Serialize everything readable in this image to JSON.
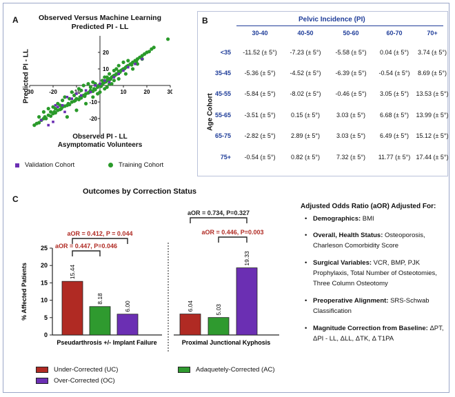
{
  "panel_a": {
    "letter": "A",
    "title_line1": "Observed Versus Machine Learning",
    "title_line2": "Predicted PI - LL",
    "xlabel_line1": "Observed PI - LL",
    "xlabel_line2": "Asymptomatic Volunteers",
    "ylabel": "Predicted PI - LL",
    "legend": {
      "validation": "Validation Cohort",
      "training": "Training Cohort"
    },
    "colors": {
      "validation": "#6b2fb3",
      "training": "#2a9a2a"
    }
  },
  "panel_b": {
    "letter": "B",
    "title": "Pelvic Incidence (PI)",
    "row_axis_label": "Age Cohort",
    "columns": [
      "30-40",
      "40-50",
      "50-60",
      "60-70",
      "70+"
    ],
    "rows": [
      {
        "label": "<35",
        "values": [
          "-11.52 (± 5°)",
          "-7.23 (± 5°)",
          "-5.58 (± 5°)",
          "0.04 (± 5°)",
          "3.74 (± 5°)"
        ]
      },
      {
        "label": "35-45",
        "values": [
          "-5.36 (± 5°)",
          "-4.52 (± 5°)",
          "-6.39 (± 5°)",
          "-0.54 (± 5°)",
          "8.69 (± 5°)"
        ]
      },
      {
        "label": "45-55",
        "values": [
          "-5.84 (± 5°)",
          "-8.02 (± 5°)",
          "-0.46 (± 5°)",
          "3.05 (± 5°)",
          "13.53 (± 5°)"
        ]
      },
      {
        "label": "55-65",
        "values": [
          "-3.51 (± 5°)",
          "0.15 (± 5°)",
          "3.03 (± 5°)",
          "6.68 (± 5°)",
          "13.99 (± 5°)"
        ]
      },
      {
        "label": "65-75",
        "values": [
          "-2.82 (± 5°)",
          "2.89 (± 5°)",
          "3.03 (± 5°)",
          "6.49 (± 5°)",
          "15.12 (± 5°)"
        ]
      },
      {
        "label": "75+",
        "values": [
          "-0.54 (± 5°)",
          "0.82 (± 5°)",
          "7.32 (± 5°)",
          "11.77 (± 5°)",
          "17.44 (± 5°)"
        ]
      }
    ]
  },
  "panel_c": {
    "letter": "C",
    "annotations": {
      "pa_upper": "aOR = 0.412, P = 0.044",
      "pa_lower": "aOR = 0.447, P=0.046",
      "pjk_upper": "aOR = 0.734, P=0.327",
      "pjk_lower": "aOR = 0.446, P=0.003"
    },
    "colors": {
      "uc": "#b02a23",
      "ac": "#2f9a2f",
      "oc": "#6b2fb3",
      "sig": "#b02a23",
      "nonsig": "#222222"
    },
    "legend": {
      "uc": "Under-Corrected (UC)",
      "ac": "Adaquetely-Corrected (AC)",
      "oc": "Over-Corrected (OC)"
    }
  },
  "adjusted": {
    "heading": "Adjusted Odds Ratio (aOR) Adjusted For:",
    "items": [
      {
        "label": "Demographics:",
        "text": "BMI"
      },
      {
        "label": "Overall, Health Status:",
        "text": "Osteoporosis, Charleson Comorbidity Score"
      },
      {
        "label": "Surgical Variables:",
        "text": "VCR, BMP, PJK Prophylaxis, Total Number of Osteotomies, Three Column Osteotomy"
      },
      {
        "label": "Preoperative Alignment:",
        "text": "SRS-Schwab Classification"
      },
      {
        "label": "Magnitude Correction from Baseline:",
        "text": "ΔPT, ΔPI - LL, ΔLL, ΔTK, Δ T1PA"
      }
    ]
  },
  "chart_data": [
    {
      "type": "scatter",
      "title": "Observed Versus Machine Learning Predicted PI - LL",
      "xlabel": "Observed PI - LL Asymptomatic Volunteers",
      "ylabel": "Predicted PI - LL",
      "xlim": [
        -30,
        30
      ],
      "ylim": [
        -30,
        30
      ],
      "xticks": [
        "-30",
        "-20",
        "-10",
        "10",
        "20",
        "30"
      ],
      "yticks": [
        "20",
        "10",
        "-10",
        "-20"
      ],
      "series": [
        {
          "name": "Training Cohort",
          "color": "#2a9a2a",
          "points": [
            [
              -28,
              -24
            ],
            [
              -27,
              -23
            ],
            [
              -26,
              -22.5
            ],
            [
              -25,
              -21
            ],
            [
              -24,
              -20
            ],
            [
              -23.5,
              -19
            ],
            [
              -23,
              -20
            ],
            [
              -22,
              -18
            ],
            [
              -21,
              -18.5
            ],
            [
              -20,
              -17
            ],
            [
              -19.5,
              -16
            ],
            [
              -19,
              -16.5
            ],
            [
              -18,
              -15
            ],
            [
              -17,
              -14.5
            ],
            [
              -16.5,
              -14
            ],
            [
              -16,
              -13
            ],
            [
              -15,
              -12.5
            ],
            [
              -14,
              -12
            ],
            [
              -13.5,
              -11
            ],
            [
              -13,
              -11.5
            ],
            [
              -12,
              -10
            ],
            [
              -11,
              -9.5
            ],
            [
              -10.5,
              -9
            ],
            [
              -10,
              -8
            ],
            [
              -9,
              -8.5
            ],
            [
              -8.5,
              -7
            ],
            [
              -8,
              -7.5
            ],
            [
              -7,
              -6
            ],
            [
              -6.5,
              -6.5
            ],
            [
              -6,
              -5
            ],
            [
              -5,
              -4.5
            ],
            [
              -4.5,
              -4
            ],
            [
              -4,
              -3
            ],
            [
              -3,
              -3.5
            ],
            [
              -2.5,
              -2
            ],
            [
              -2,
              -2.5
            ],
            [
              -1,
              -1
            ],
            [
              -0.5,
              0
            ],
            [
              0,
              0.5
            ],
            [
              0.5,
              -0.5
            ],
            [
              1,
              1
            ],
            [
              1.5,
              1.5
            ],
            [
              2,
              2
            ],
            [
              2.5,
              2.2
            ],
            [
              3,
              3
            ],
            [
              3.5,
              3.2
            ],
            [
              4,
              4
            ],
            [
              4.5,
              3.8
            ],
            [
              5,
              5
            ],
            [
              5.5,
              5.5
            ],
            [
              6,
              6
            ],
            [
              6.5,
              6.2
            ],
            [
              7,
              7
            ],
            [
              7.5,
              7
            ],
            [
              8,
              8.5
            ],
            [
              8.5,
              8
            ],
            [
              9,
              9
            ],
            [
              9.5,
              9.5
            ],
            [
              10,
              10
            ],
            [
              10.5,
              10.2
            ],
            [
              11,
              11
            ],
            [
              11.5,
              11.5
            ],
            [
              12,
              12
            ],
            [
              13,
              13
            ],
            [
              13.5,
              12.5
            ],
            [
              14,
              14
            ],
            [
              15,
              15
            ],
            [
              15.5,
              14.5
            ],
            [
              16,
              16
            ],
            [
              17,
              17
            ],
            [
              18,
              18
            ],
            [
              19,
              19
            ],
            [
              20,
              20
            ],
            [
              21,
              20.5
            ],
            [
              22,
              22
            ],
            [
              23,
              23
            ],
            [
              29,
              28
            ],
            [
              -26,
              -19
            ],
            [
              -22,
              -14
            ],
            [
              -18,
              -11
            ],
            [
              -15,
              -7
            ],
            [
              -12,
              -4
            ],
            [
              -9,
              -2
            ],
            [
              -7,
              0
            ],
            [
              -5,
              1
            ],
            [
              -3,
              2
            ],
            [
              -14,
              -19
            ],
            [
              -10,
              -15
            ],
            [
              -6,
              -11
            ],
            [
              -3,
              -7
            ],
            [
              0,
              -4
            ],
            [
              3,
              -1
            ],
            [
              -20,
              -13
            ],
            [
              -16,
              -9
            ],
            [
              2,
              5
            ],
            [
              4,
              7
            ],
            [
              6,
              9
            ],
            [
              8,
              12
            ],
            [
              10,
              14
            ],
            [
              5,
              1
            ],
            [
              8,
              4
            ],
            [
              11,
              7
            ],
            [
              14,
              10
            ],
            [
              -24,
              -16
            ],
            [
              -8,
              -3
            ],
            [
              -4,
              -1
            ],
            [
              1,
              3
            ],
            [
              3,
              5
            ],
            [
              -11,
              -6
            ],
            [
              -13,
              -8
            ],
            [
              -2,
              1
            ],
            [
              7,
              10
            ],
            [
              12,
              15
            ],
            [
              -17,
              -12
            ],
            [
              -19,
              -14
            ],
            [
              -21,
              -16
            ],
            [
              16,
              13
            ],
            [
              18,
              16
            ],
            [
              -1,
              -5
            ],
            [
              2,
              -2
            ],
            [
              4,
              1
            ],
            [
              6,
              3
            ]
          ]
        },
        {
          "name": "Validation Cohort",
          "color": "#6b2fb3",
          "points": [
            [
              -22,
              -24
            ],
            [
              -19,
              -12
            ],
            [
              -18,
              -13
            ],
            [
              -16,
              -12
            ],
            [
              -14,
              -7
            ],
            [
              -12,
              -8
            ],
            [
              -10,
              -5
            ],
            [
              -8,
              -6
            ],
            [
              -6,
              -3
            ],
            [
              -4,
              -4
            ],
            [
              -2,
              0
            ],
            [
              0,
              1
            ],
            [
              2,
              3
            ],
            [
              4,
              2
            ],
            [
              6,
              5
            ],
            [
              8,
              7
            ],
            [
              10,
              9
            ],
            [
              12,
              11
            ],
            [
              15,
              13
            ],
            [
              18,
              16
            ],
            [
              -25,
              -21
            ],
            [
              -20,
              -22
            ],
            [
              -15,
              -16
            ]
          ]
        }
      ]
    },
    {
      "type": "bar",
      "title": "Outcomes by Correction Status",
      "ylabel": "% Affected Patients",
      "ylim": [
        0,
        25
      ],
      "yticks": [
        0,
        5,
        10,
        15,
        20,
        25
      ],
      "categories": [
        "Pseudarthrosis +/- Implant Failure",
        "Proximal Junctional Kyphosis"
      ],
      "series": [
        {
          "name": "Under-Corrected (UC)",
          "values": [
            15.44,
            6.04
          ]
        },
        {
          "name": "Adaquetely-Corrected (AC)",
          "values": [
            8.18,
            5.03
          ]
        },
        {
          "name": "Over-Corrected (OC)",
          "values": [
            6.0,
            19.33
          ]
        }
      ],
      "value_labels": [
        "15.44",
        "8.18",
        "6.00",
        "6.04",
        "5.03",
        "19.33"
      ]
    }
  ]
}
